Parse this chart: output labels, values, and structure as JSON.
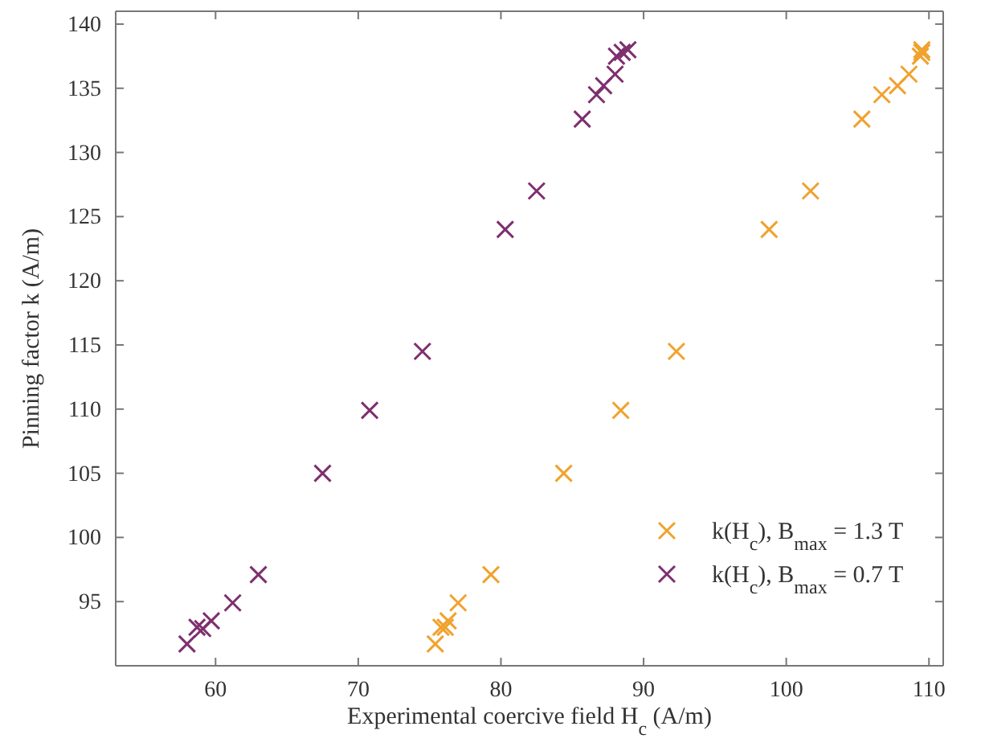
{
  "chart_data": {
    "type": "scatter",
    "xlabel": "Experimental coercive field H$_{c}$ (A/m)",
    "ylabel": "Pinning factor k (A/m)",
    "xlim": [
      53,
      111
    ],
    "ylim": [
      90,
      141
    ],
    "xticks": [
      60,
      70,
      80,
      90,
      100,
      110
    ],
    "yticks": [
      95,
      100,
      105,
      110,
      115,
      120,
      125,
      130,
      135,
      140
    ],
    "grid": false,
    "legend": "bottom right",
    "marker": "cross",
    "series": [
      {
        "name": "k(H$_{c}$), B$_{max}$ = 1.3 T",
        "color": "#f0a22e",
        "x": [
          75.4,
          75.8,
          76.1,
          76.3,
          77.0,
          79.3,
          84.4,
          88.4,
          92.3,
          98.8,
          101.7,
          105.3,
          106.7,
          107.8,
          108.6,
          109.4,
          109.5,
          109.5
        ],
        "values": [
          91.7,
          93.0,
          93.0,
          93.5,
          94.9,
          97.1,
          105.0,
          109.9,
          114.5,
          124.0,
          127.0,
          132.6,
          134.5,
          135.2,
          136.1,
          137.5,
          137.8,
          138.0
        ]
      },
      {
        "name": "k(H$_{c}$), B$_{max}$ = 0.7 T",
        "color": "#7e2f6e",
        "x": [
          58.0,
          58.7,
          59.1,
          59.7,
          61.2,
          63.0,
          67.5,
          70.8,
          74.5,
          80.3,
          82.5,
          85.7,
          86.7,
          87.2,
          88.0,
          88.1,
          88.5,
          88.9
        ],
        "values": [
          91.7,
          93.0,
          92.9,
          93.5,
          94.9,
          97.1,
          105.0,
          109.9,
          114.5,
          124.0,
          127.0,
          132.6,
          134.5,
          135.2,
          136.1,
          137.5,
          137.8,
          138.0
        ]
      }
    ]
  }
}
